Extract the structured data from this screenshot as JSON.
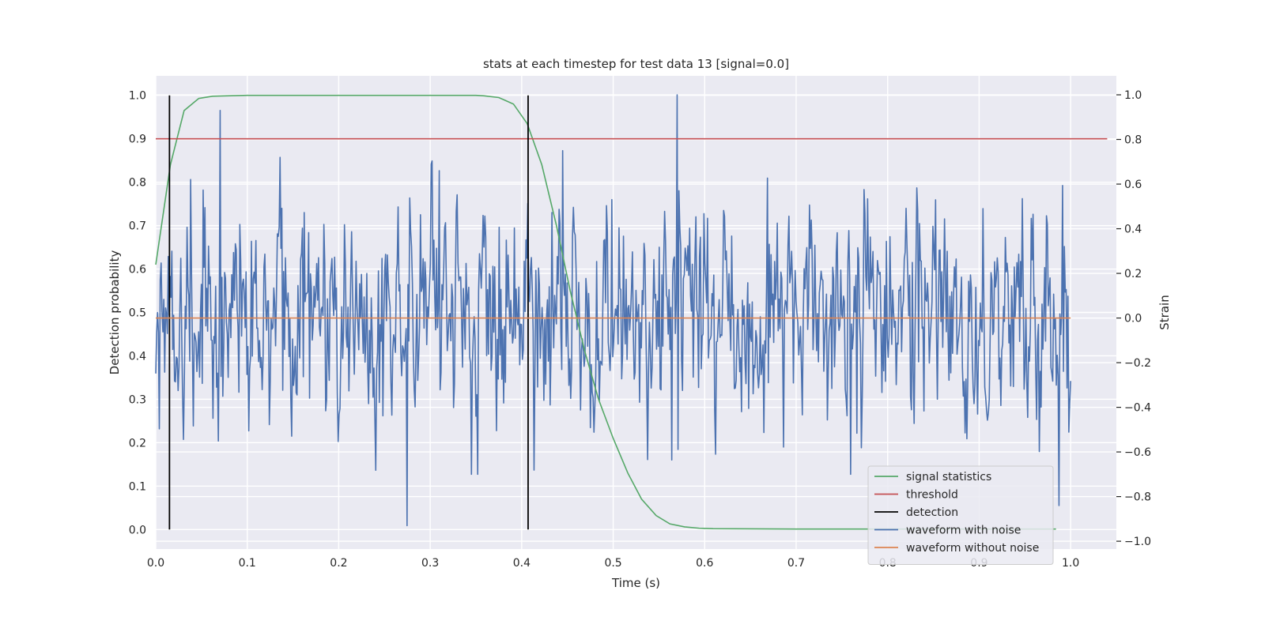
{
  "chart_data": {
    "type": "line",
    "title": "stats at each timestep for test data 13 [signal=0.0]",
    "xlabel": "Time (s)",
    "ylabel": "Detection probability",
    "ylabel_right": "Strain",
    "xlim": [
      0.0,
      1.05
    ],
    "ylim": [
      -0.045,
      1.045
    ],
    "ylim_right": [
      -1.035,
      1.085
    ],
    "xticks": [
      0.0,
      0.1,
      0.2,
      0.3,
      0.4,
      0.5,
      0.6,
      0.7,
      0.8,
      0.9,
      1.0
    ],
    "yticks": [
      0.0,
      0.1,
      0.2,
      0.3,
      0.4,
      0.5,
      0.6,
      0.7,
      0.8,
      0.9,
      1.0
    ],
    "yticks_right": [
      -1.0,
      -0.8,
      -0.6,
      -0.4,
      -0.2,
      0.0,
      0.2,
      0.4,
      0.6,
      0.8,
      1.0
    ],
    "grid": true,
    "legend_position": "lower-right",
    "series": [
      {
        "name": "signal statistics",
        "color": "#55a868",
        "axis": "left",
        "x": [
          0.0,
          0.016,
          0.031,
          0.047,
          0.062,
          0.078,
          0.1,
          0.15,
          0.2,
          0.25,
          0.3,
          0.35,
          0.359,
          0.375,
          0.391,
          0.406,
          0.422,
          0.438,
          0.453,
          0.469,
          0.484,
          0.5,
          0.516,
          0.531,
          0.547,
          0.562,
          0.578,
          0.594,
          0.609,
          0.7,
          0.8,
          0.9,
          0.984
        ],
        "y": [
          0.61,
          0.84,
          0.965,
          0.993,
          0.998,
          0.999,
          1.0,
          1.0,
          1.0,
          1.0,
          1.0,
          1.0,
          0.999,
          0.995,
          0.98,
          0.935,
          0.84,
          0.7,
          0.55,
          0.41,
          0.3,
          0.21,
          0.13,
          0.07,
          0.032,
          0.013,
          0.006,
          0.003,
          0.002,
          0.001,
          0.001,
          0.001,
          0.001
        ]
      },
      {
        "name": "threshold",
        "color": "#c44e52",
        "axis": "left",
        "x": [
          0.0,
          1.04
        ],
        "y": [
          0.9,
          0.9
        ]
      },
      {
        "name": "detection",
        "color": "#000000",
        "axis": "left",
        "type": "vlines",
        "x": [
          0.015,
          0.407
        ],
        "y": [
          0.0,
          1.0
        ]
      },
      {
        "name": "waveform with noise",
        "color": "#4c72b0",
        "axis": "right",
        "x_range": [
          0.0,
          1.0
        ],
        "n_points": 1024,
        "peaks": [
          {
            "x": 0.275,
            "y": -0.93
          },
          {
            "x": 0.07,
            "y": 0.93
          },
          {
            "x": 0.57,
            "y": 1.0
          },
          {
            "x": 0.987,
            "y": -0.84
          },
          {
            "x": 0.31,
            "y": 0.66
          },
          {
            "x": 0.445,
            "y": 0.75
          }
        ]
      },
      {
        "name": "waveform without noise",
        "color": "#dd8452",
        "axis": "right",
        "x": [
          0.0,
          1.0
        ],
        "y": [
          0.0,
          0.0
        ]
      }
    ]
  }
}
